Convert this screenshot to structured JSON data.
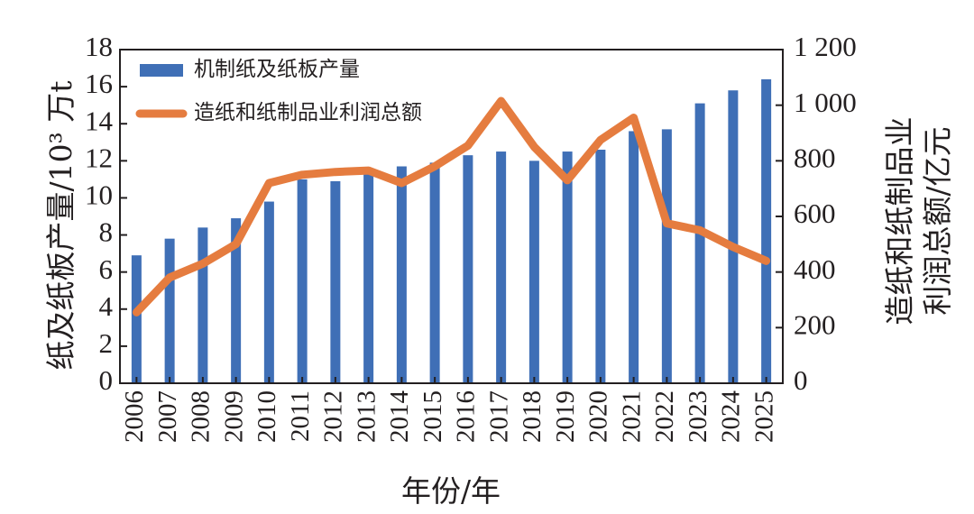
{
  "chart_data": {
    "type": "bar+line",
    "categories": [
      "2006",
      "2007",
      "2008",
      "2009",
      "2010",
      "2011",
      "2012",
      "2013",
      "2014",
      "2015",
      "2016",
      "2017",
      "2018",
      "2019",
      "2020",
      "2021",
      "2022",
      "2023",
      "2024",
      "2025"
    ],
    "series": [
      {
        "name": "机制纸及纸板产量",
        "type": "bar",
        "axis": "left",
        "color": "#3f6fb6",
        "values": [
          6.9,
          7.8,
          8.4,
          8.9,
          9.8,
          11.0,
          10.9,
          11.3,
          11.7,
          11.9,
          12.3,
          12.5,
          12.0,
          12.5,
          12.6,
          13.6,
          13.7,
          15.1,
          15.8,
          16.4
        ]
      },
      {
        "name": "造纸和纸制品业利润总额",
        "type": "line",
        "axis": "right",
        "color": "#e57c3f",
        "values": [
          255,
          380,
          430,
          500,
          720,
          750,
          760,
          765,
          720,
          780,
          855,
          1015,
          850,
          730,
          875,
          955,
          575,
          550,
          490,
          440
        ]
      }
    ],
    "y_left": {
      "label": "纸及纸板产量/10³ 万t",
      "range": [
        0,
        18
      ],
      "ticks": [
        "0",
        "2",
        "4",
        "6",
        "8",
        "10",
        "12",
        "14",
        "16",
        "18"
      ]
    },
    "y_right": {
      "label_line1": "造纸和纸制品业",
      "label_line2": "利润总额/亿元",
      "range": [
        0,
        1200
      ],
      "ticks": [
        "0",
        "200",
        "400",
        "600",
        "800",
        "1 000",
        "1 200"
      ]
    },
    "xlabel": "年份/年",
    "legend": "top-left",
    "grid": false
  }
}
